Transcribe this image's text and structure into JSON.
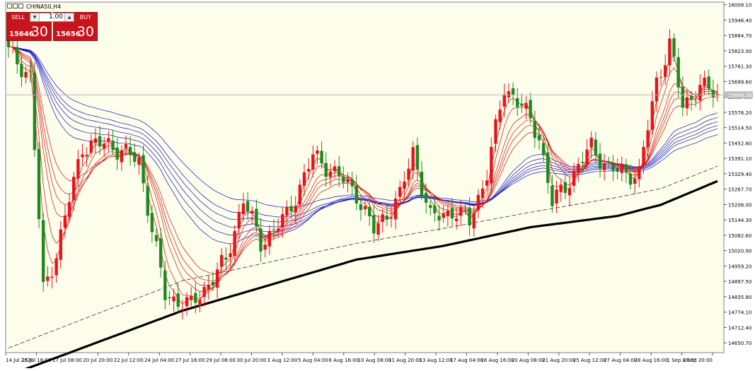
{
  "window": {
    "title": "CHINA50,H4",
    "icons": [
      "window-icon",
      "window-icon",
      "window-icon"
    ]
  },
  "trade_panel": {
    "sell_label": "SELL",
    "buy_label": "BUY",
    "volume": "1.00",
    "sell_price_prefix": "15646",
    "sell_price_big": "30",
    "buy_price_prefix": "15656",
    "buy_price_big": "30",
    "button_color": "#c8141c"
  },
  "colors": {
    "background": "#fdfdec",
    "bull": "#e8141a",
    "bear": "#1e8a1e",
    "fast_ma": "#cc1111",
    "slow_ma": "#1010cc",
    "long_ma": "#000000",
    "bid_line": "#b8b8b8"
  },
  "price_axis": {
    "labels": [
      "16008.10",
      "15946.40",
      "15884.70",
      "15823.00",
      "15761.30",
      "15699.60",
      "15637.90",
      "15576.20",
      "15514.50",
      "15452.80",
      "15391.10",
      "15329.40",
      "15267.70",
      "15206.00",
      "15144.30",
      "15082.60",
      "15020.90",
      "14959.20",
      "14897.50",
      "14835.80",
      "14774.10",
      "14712.40",
      "14650.70"
    ],
    "current_price": "15646.30",
    "range": [
      14620,
      16010
    ]
  },
  "time_axis": {
    "labels": [
      "14 Jul 2020",
      "15 Jul 16:00",
      "17 Jul 08:00",
      "20 Jul 20:00",
      "22 Jul 12:00",
      "24 Jul 04:00",
      "27 Jul 16:00",
      "29 Jul 08:00",
      "30 Jul 20:00",
      "3 Aug 12:00",
      "5 Aug 04:00",
      "6 Aug 16:00",
      "10 Aug 08:00",
      "11 Aug 20:00",
      "13 Aug 12:00",
      "17 Aug 04:00",
      "18 Aug 16:00",
      "20 Aug 08:00",
      "21 Aug 20:00",
      "25 Aug 12:00",
      "27 Aug 04:00",
      "28 Aug 16:00",
      "1 Sep 08:00",
      "2 Sep 20:00"
    ]
  },
  "chart_data": {
    "type": "candlestick",
    "symbol": "CHINA50",
    "timeframe": "H4",
    "ylim": [
      14620,
      16010
    ],
    "grid": false,
    "anchors": [
      {
        "bar": 0,
        "price": 15820
      },
      {
        "bar": 5,
        "price": 15720
      },
      {
        "bar": 8,
        "price": 14860
      },
      {
        "bar": 11,
        "price": 15010
      },
      {
        "bar": 17,
        "price": 15440
      },
      {
        "bar": 23,
        "price": 15450
      },
      {
        "bar": 30,
        "price": 15380
      },
      {
        "bar": 36,
        "price": 14840
      },
      {
        "bar": 42,
        "price": 14800
      },
      {
        "bar": 50,
        "price": 14980
      },
      {
        "bar": 54,
        "price": 15230
      },
      {
        "bar": 58,
        "price": 15050
      },
      {
        "bar": 64,
        "price": 15160
      },
      {
        "bar": 70,
        "price": 15400
      },
      {
        "bar": 74,
        "price": 15350
      },
      {
        "bar": 80,
        "price": 15250
      },
      {
        "bar": 84,
        "price": 15100
      },
      {
        "bar": 90,
        "price": 15240
      },
      {
        "bar": 93,
        "price": 15420
      },
      {
        "bar": 97,
        "price": 15150
      },
      {
        "bar": 102,
        "price": 15180
      },
      {
        "bar": 106,
        "price": 15140
      },
      {
        "bar": 110,
        "price": 15330
      },
      {
        "bar": 114,
        "price": 15680
      },
      {
        "bar": 118,
        "price": 15600
      },
      {
        "bar": 122,
        "price": 15480
      },
      {
        "bar": 125,
        "price": 15210
      },
      {
        "bar": 130,
        "price": 15330
      },
      {
        "bar": 134,
        "price": 15440
      },
      {
        "bar": 138,
        "price": 15350
      },
      {
        "bar": 142,
        "price": 15330
      },
      {
        "bar": 145,
        "price": 15330
      },
      {
        "bar": 149,
        "price": 15700
      },
      {
        "bar": 152,
        "price": 15850
      },
      {
        "bar": 155,
        "price": 15600
      },
      {
        "bar": 159,
        "price": 15680
      },
      {
        "bar": 163,
        "price": 15650
      }
    ],
    "long_ma": {
      "points": [
        [
          0,
          14520
        ],
        [
          40,
          14780
        ],
        [
          80,
          14985
        ],
        [
          100,
          15040
        ],
        [
          120,
          15115
        ],
        [
          140,
          15160
        ],
        [
          150,
          15205
        ],
        [
          163,
          15300
        ]
      ]
    },
    "dashed_ma": {
      "points": [
        [
          0,
          14630
        ],
        [
          40,
          14900
        ],
        [
          80,
          15050
        ],
        [
          100,
          15110
        ],
        [
          120,
          15175
        ],
        [
          140,
          15235
        ],
        [
          150,
          15270
        ],
        [
          163,
          15360
        ]
      ]
    }
  }
}
